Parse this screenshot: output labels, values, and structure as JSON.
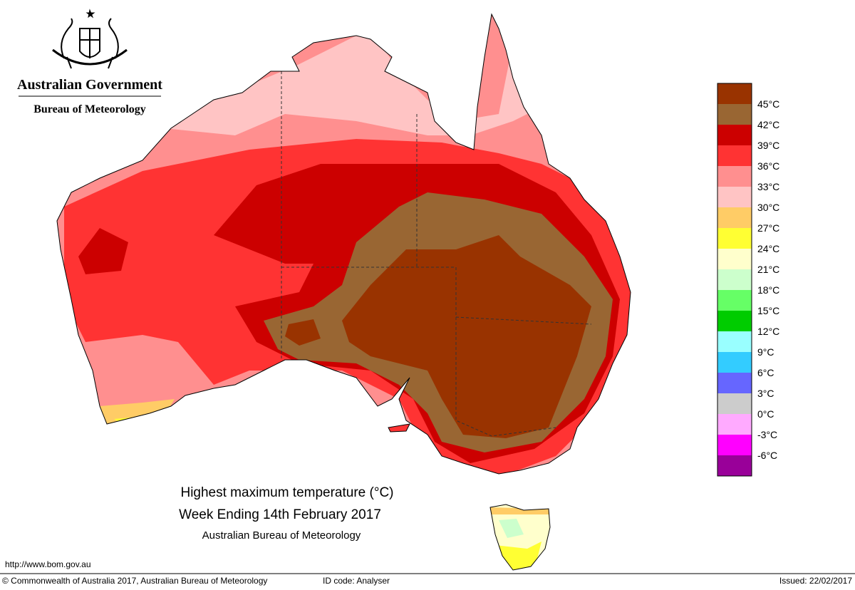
{
  "header": {
    "government": "Australian Government",
    "agency": "Bureau of Meteorology"
  },
  "title": {
    "line1": "Highest maximum temperature (°C)",
    "line2": "Week Ending 14th February 2017",
    "line3": "Australian Bureau of Meteorology"
  },
  "legend": {
    "colors": [
      "#993300",
      "#996633",
      "#cc0000",
      "#ff3333",
      "#ff8f8f",
      "#ffc4c4",
      "#ffcc66",
      "#ffff33",
      "#ffffcc",
      "#ccffcc",
      "#66ff66",
      "#00cc00",
      "#99ffff",
      "#33ccff",
      "#6666ff",
      "#cccccc",
      "#ffaaff",
      "#ff00ff",
      "#990099"
    ],
    "labels": [
      "45°C",
      "42°C",
      "39°C",
      "36°C",
      "33°C",
      "30°C",
      "27°C",
      "24°C",
      "21°C",
      "18°C",
      "15°C",
      "12°C",
      "9°C",
      "6°C",
      "3°C",
      "0°C",
      "-3°C",
      "-6°C"
    ]
  },
  "footer": {
    "url": "http://www.bom.gov.au",
    "copyright": "© Commonwealth of Australia 2017, Australian Bureau of Meteorology",
    "id_code": "ID code: Analyser",
    "issued": "Issued: 22/02/2017"
  }
}
